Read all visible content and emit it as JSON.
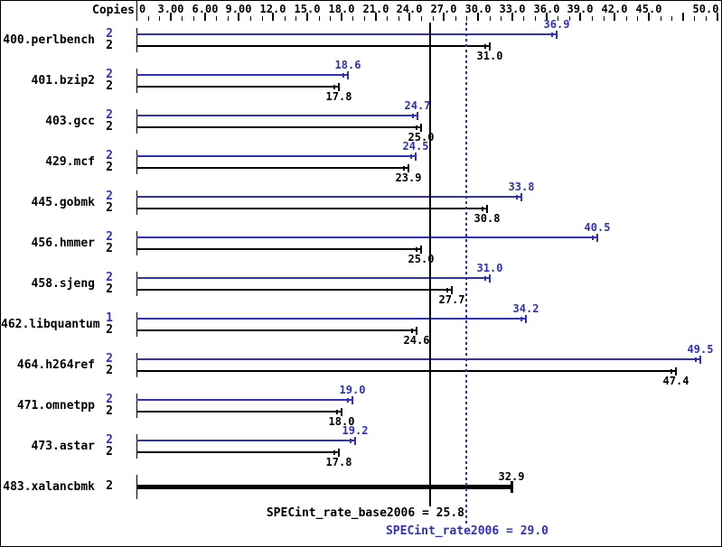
{
  "chart_data": {
    "type": "bar",
    "orientation": "horizontal",
    "title": "",
    "axis": {
      "title": "Copies",
      "position": "top",
      "xlim": [
        0,
        51.5
      ],
      "minor_step": 1,
      "major_step": 3,
      "grid": false,
      "tick_labels": [
        {
          "v": 0,
          "t": "0"
        },
        {
          "v": 3,
          "t": "3.00"
        },
        {
          "v": 6,
          "t": "6.00"
        },
        {
          "v": 9,
          "t": "9.00"
        },
        {
          "v": 12,
          "t": "12.0"
        },
        {
          "v": 15,
          "t": "15.0"
        },
        {
          "v": 18,
          "t": "18.0"
        },
        {
          "v": 21,
          "t": "21.0"
        },
        {
          "v": 24,
          "t": "24.0"
        },
        {
          "v": 27,
          "t": "27.0"
        },
        {
          "v": 30,
          "t": "30.0"
        },
        {
          "v": 33,
          "t": "33.0"
        },
        {
          "v": 36,
          "t": "36.0"
        },
        {
          "v": 39,
          "t": "39.0"
        },
        {
          "v": 42,
          "t": "42.0"
        },
        {
          "v": 45,
          "t": "45.0"
        },
        {
          "v": 50,
          "t": "50.0"
        }
      ]
    },
    "colors": {
      "peak": "#3030c0",
      "base": "#000000"
    },
    "legend": {
      "peak_series": "SPECint_rate2006 (peak)",
      "base_series": "SPECint_rate_base2006 (base)"
    },
    "rows": [
      {
        "benchmark": "400.perlbench",
        "bars": [
          {
            "kind": "peak",
            "copies": "2",
            "value": 36.9,
            "label": "36.9"
          },
          {
            "kind": "base",
            "copies": "2",
            "value": 31.0,
            "label": "31.0"
          }
        ]
      },
      {
        "benchmark": "401.bzip2",
        "bars": [
          {
            "kind": "peak",
            "copies": "2",
            "value": 18.6,
            "label": "18.6"
          },
          {
            "kind": "base",
            "copies": "2",
            "value": 17.8,
            "label": "17.8"
          }
        ]
      },
      {
        "benchmark": "403.gcc",
        "bars": [
          {
            "kind": "peak",
            "copies": "2",
            "value": 24.7,
            "label": "24.7"
          },
          {
            "kind": "base",
            "copies": "2",
            "value": 25.0,
            "label": "25.0"
          }
        ]
      },
      {
        "benchmark": "429.mcf",
        "bars": [
          {
            "kind": "peak",
            "copies": "2",
            "value": 24.5,
            "label": "24.5"
          },
          {
            "kind": "base",
            "copies": "2",
            "value": 23.9,
            "label": "23.9"
          }
        ]
      },
      {
        "benchmark": "445.gobmk",
        "bars": [
          {
            "kind": "peak",
            "copies": "2",
            "value": 33.8,
            "label": "33.8"
          },
          {
            "kind": "base",
            "copies": "2",
            "value": 30.8,
            "label": "30.8"
          }
        ]
      },
      {
        "benchmark": "456.hmmer",
        "bars": [
          {
            "kind": "peak",
            "copies": "2",
            "value": 40.5,
            "label": "40.5"
          },
          {
            "kind": "base",
            "copies": "2",
            "value": 25.0,
            "label": "25.0"
          }
        ]
      },
      {
        "benchmark": "458.sjeng",
        "bars": [
          {
            "kind": "peak",
            "copies": "2",
            "value": 31.0,
            "label": "31.0"
          },
          {
            "kind": "base",
            "copies": "2",
            "value": 27.7,
            "label": "27.7"
          }
        ]
      },
      {
        "benchmark": "462.libquantum",
        "bars": [
          {
            "kind": "peak",
            "copies": "1",
            "value": 34.2,
            "label": "34.2"
          },
          {
            "kind": "base",
            "copies": "2",
            "value": 24.6,
            "label": "24.6"
          }
        ]
      },
      {
        "benchmark": "464.h264ref",
        "bars": [
          {
            "kind": "peak",
            "copies": "2",
            "value": 49.5,
            "label": "49.5"
          },
          {
            "kind": "base",
            "copies": "2",
            "value": 47.4,
            "label": "47.4"
          }
        ]
      },
      {
        "benchmark": "471.omnetpp",
        "bars": [
          {
            "kind": "peak",
            "copies": "2",
            "value": 19.0,
            "label": "19.0"
          },
          {
            "kind": "base",
            "copies": "2",
            "value": 18.0,
            "label": "18.0"
          }
        ]
      },
      {
        "benchmark": "473.astar",
        "bars": [
          {
            "kind": "peak",
            "copies": "2",
            "value": 19.2,
            "label": "19.2"
          },
          {
            "kind": "base",
            "copies": "2",
            "value": 17.8,
            "label": "17.8"
          }
        ]
      },
      {
        "benchmark": "483.xalancbmk",
        "bars": [
          {
            "kind": "single",
            "copies": "2",
            "value": 32.9,
            "label": "32.9"
          }
        ]
      }
    ],
    "reference_lines": [
      {
        "id": "base_mean",
        "label": "SPECint_rate_base2006 = 25.8",
        "value": 25.8,
        "style": "solid",
        "color": "#000000"
      },
      {
        "id": "peak_mean",
        "label": "SPECint_rate2006 = 29.0",
        "value": 29.0,
        "style": "dotted",
        "color": "#3030c0"
      }
    ]
  }
}
